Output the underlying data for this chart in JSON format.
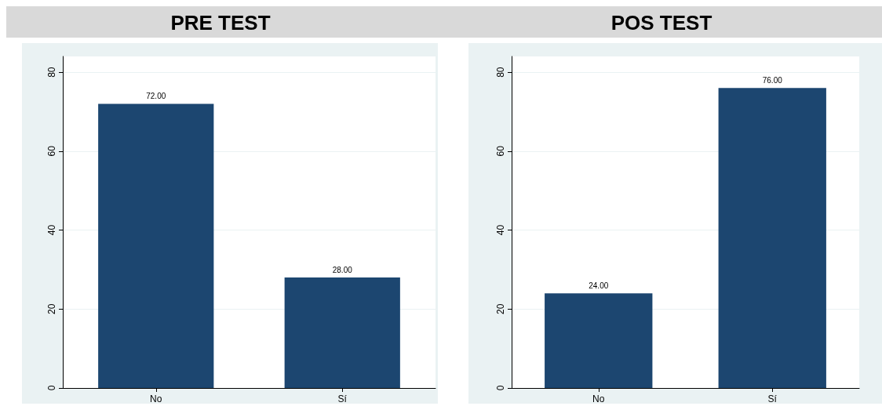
{
  "chart_data": [
    {
      "type": "bar",
      "title": "PRE TEST",
      "categories": [
        "No",
        "Sí"
      ],
      "values": [
        72,
        28
      ],
      "value_labels": [
        "72.00",
        "28.00"
      ],
      "color": "#1c4670",
      "ylim": [
        0,
        84
      ],
      "yticks": [
        0,
        20,
        40,
        60,
        80
      ],
      "grid": "y"
    },
    {
      "type": "bar",
      "title": "POS TEST",
      "categories": [
        "No",
        "Sí"
      ],
      "values": [
        24,
        76
      ],
      "value_labels": [
        "24.00",
        "76.00"
      ],
      "color": "#1c4670",
      "ylim": [
        0,
        84
      ],
      "yticks": [
        0,
        20,
        40,
        60,
        80
      ],
      "grid": "y"
    }
  ]
}
